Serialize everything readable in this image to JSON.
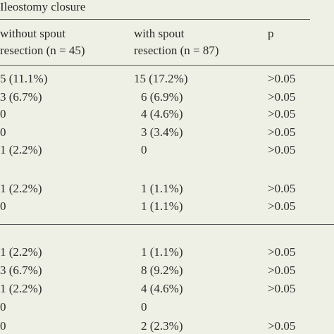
{
  "header": {
    "group": "Ileostomy closure",
    "columns": [
      [
        "without spout",
        "resection (n = 45)"
      ],
      [
        "with spout",
        "resection (n = 87)"
      ],
      [
        "p"
      ]
    ]
  },
  "sections": [
    [
      [
        "5 (11.1%)",
        "15 (17.2%)",
        ">0.05"
      ],
      [
        "3 (6.7%)",
        "6 (6.9%)",
        ">0.05"
      ],
      [
        "0",
        "4 (4.6%)",
        ">0.05"
      ],
      [
        "0",
        "3 (3.4%)",
        ">0.05"
      ],
      [
        "1 (2.2%)",
        "0",
        ">0.05"
      ],
      [
        "1 (2.2%)",
        "1 (1.1%)",
        ">0.05"
      ],
      [
        "0",
        "1 (1.1%)",
        ">0.05"
      ]
    ],
    [
      [
        "1 (2.2%)",
        "1 (1.1%)",
        ">0.05"
      ],
      [
        "3 (6.7%)",
        "8 (9.2%)",
        ">0.05"
      ],
      [
        "1 (2.2%)",
        "4 (4.6%)",
        ">0.05"
      ],
      [
        "0",
        "0",
        ""
      ],
      [
        "0",
        "2 (2.3%)",
        ">0.05"
      ]
    ]
  ]
}
